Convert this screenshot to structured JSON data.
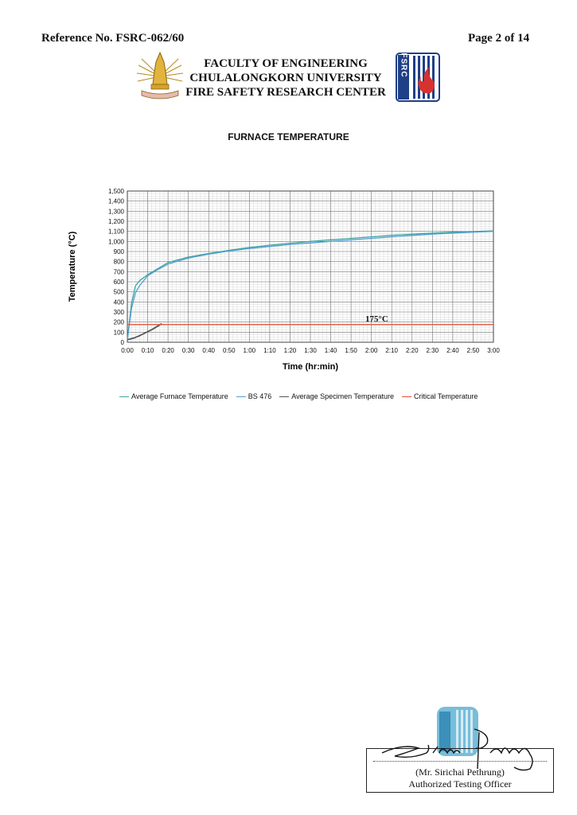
{
  "header": {
    "reference": "Reference No. FSRC-062/60",
    "page": "Page 2 of 14",
    "institution_lines": [
      "FACULTY OF ENGINEERING",
      "CHULALONGKORN UNIVERSITY",
      "FIRE SAFETY RESEARCH CENTER"
    ],
    "logo_right_text": "FSRC"
  },
  "chart_data": {
    "type": "line",
    "title": "FURNACE TEMPERATURE",
    "xlabel": "Time (hr:min)",
    "ylabel": "Temperature (°C)",
    "xlim": [
      0,
      180
    ],
    "ylim": [
      0,
      1500
    ],
    "x_ticks": [
      "0:00",
      "0:10",
      "0:20",
      "0:30",
      "0:40",
      "0:50",
      "1:00",
      "1:10",
      "1:20",
      "1:30",
      "1:40",
      "1:50",
      "2:00",
      "2:10",
      "2:20",
      "2:30",
      "2:40",
      "2:50",
      "3:00"
    ],
    "y_ticks": [
      "0",
      "100",
      "200",
      "300",
      "400",
      "500",
      "600",
      "700",
      "800",
      "900",
      "1,000",
      "1,100",
      "1,200",
      "1,300",
      "1,400",
      "1,500"
    ],
    "grid": true,
    "legend_position": "bottom",
    "annotation": "175°C",
    "series": [
      {
        "name": "Average Furnace Temperature",
        "color": "#3fa39a",
        "x": [
          0,
          2,
          4,
          6,
          10,
          15,
          20,
          30,
          40,
          50,
          60,
          70,
          80,
          90,
          100,
          110,
          120,
          130,
          140,
          150,
          160,
          170,
          180
        ],
        "y": [
          20,
          380,
          560,
          610,
          670,
          730,
          790,
          845,
          880,
          912,
          940,
          962,
          982,
          1000,
          1015,
          1030,
          1045,
          1060,
          1072,
          1082,
          1092,
          1098,
          1105
        ]
      },
      {
        "name": "BS 476",
        "color": "#4f9fd6",
        "x": [
          0,
          2,
          4,
          6,
          10,
          15,
          20,
          30,
          40,
          50,
          60,
          70,
          80,
          90,
          100,
          110,
          120,
          130,
          140,
          150,
          160,
          170,
          180
        ],
        "y": [
          20,
          330,
          490,
          560,
          660,
          720,
          775,
          835,
          873,
          905,
          930,
          950,
          970,
          985,
          1000,
          1015,
          1030,
          1045,
          1060,
          1072,
          1082,
          1092,
          1100
        ]
      },
      {
        "name": "Average Specimen Temperature",
        "color": "#555555",
        "x": [
          0,
          3,
          6,
          9,
          12,
          15,
          17
        ],
        "y": [
          25,
          40,
          65,
          95,
          125,
          160,
          185
        ]
      },
      {
        "name": "Critical Temperature",
        "color": "#e0533b",
        "x": [
          0,
          180
        ],
        "y": [
          175,
          175
        ]
      }
    ]
  },
  "signature": {
    "name": "(Mr. Sirichai   Pethrung)",
    "role": "Authorized Testing Officer"
  }
}
